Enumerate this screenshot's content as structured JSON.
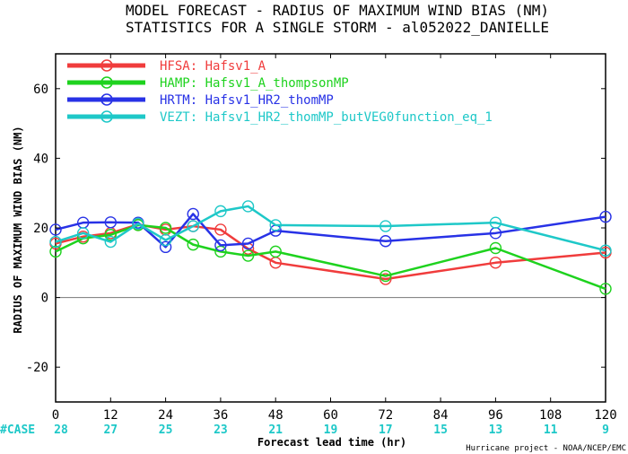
{
  "header": {
    "title_line1": "MODEL FORECAST - RADIUS OF MAXIMUM WIND BIAS (NM)",
    "title_line2": "STATISTICS FOR A SINGLE STORM - al052022_DANIELLE"
  },
  "footer": {
    "credit": "Hurricane project - NOAA/NCEP/EMC",
    "case_label": "#CASE"
  },
  "colors": {
    "HFSA": "#f03c3c",
    "HAMP": "#1ed21e",
    "HRTM": "#2832e6",
    "VEZT": "#1ec8c8",
    "zero_line": "#777777"
  },
  "chart_data": {
    "type": "line",
    "title": "MODEL FORECAST - RADIUS OF MAXIMUM WIND BIAS (NM)",
    "subtitle": "STATISTICS FOR A SINGLE STORM - al052022_DANIELLE",
    "xlabel": "Forecast lead time (hr)",
    "ylabel": "RADIUS OF MAXIMUM WIND BIAS (NM)",
    "xlim": [
      0,
      120
    ],
    "ylim": [
      -30,
      70
    ],
    "x_ticks": [
      0,
      12,
      24,
      36,
      48,
      60,
      72,
      84,
      96,
      108,
      120
    ],
    "y_ticks": [
      -20,
      0,
      20,
      40,
      60
    ],
    "grid": false,
    "legend_position": "top-left",
    "cases": [
      "28",
      "27",
      "25",
      "23",
      "21",
      "19",
      "17",
      "15",
      "13",
      "11",
      "9"
    ],
    "series": [
      {
        "key": "HFSA",
        "name": "HFSA: Hafsv1_A",
        "x": [
          0,
          6,
          12,
          18,
          24,
          30,
          36,
          42,
          48,
          72,
          96,
          120
        ],
        "y": [
          15.5,
          17.5,
          18.5,
          21.0,
          19.5,
          20.5,
          19.5,
          14.0,
          10.0,
          5.3,
          10.0,
          12.9
        ]
      },
      {
        "key": "HAMP",
        "name": "HAMP: Hafsv1_A_thompsonMP",
        "x": [
          0,
          6,
          12,
          18,
          24,
          30,
          36,
          42,
          48,
          72,
          96,
          120
        ],
        "y": [
          13.2,
          17.0,
          18.0,
          20.8,
          20.0,
          15.2,
          13.2,
          12.0,
          13.2,
          6.2,
          14.2,
          2.5
        ]
      },
      {
        "key": "HRTM",
        "name": "HRTM: Hafsv1_HR2_thomMP",
        "x": [
          0,
          6,
          12,
          18,
          24,
          30,
          36,
          42,
          48,
          72,
          96,
          120
        ],
        "y": [
          19.5,
          21.5,
          21.6,
          21.5,
          14.5,
          24.0,
          15.0,
          15.5,
          19.2,
          16.2,
          18.5,
          23.2
        ]
      },
      {
        "key": "VEZT",
        "name": "VEZT: Hafsv1_HR2_thomMP_butVEG0function_eq_1",
        "x": [
          0,
          6,
          12,
          18,
          24,
          30,
          36,
          42,
          48,
          72,
          96,
          120
        ],
        "y": [
          16.0,
          18.5,
          16.0,
          21.2,
          16.5,
          20.5,
          24.8,
          26.2,
          20.8,
          20.5,
          21.5,
          13.5
        ]
      }
    ]
  }
}
